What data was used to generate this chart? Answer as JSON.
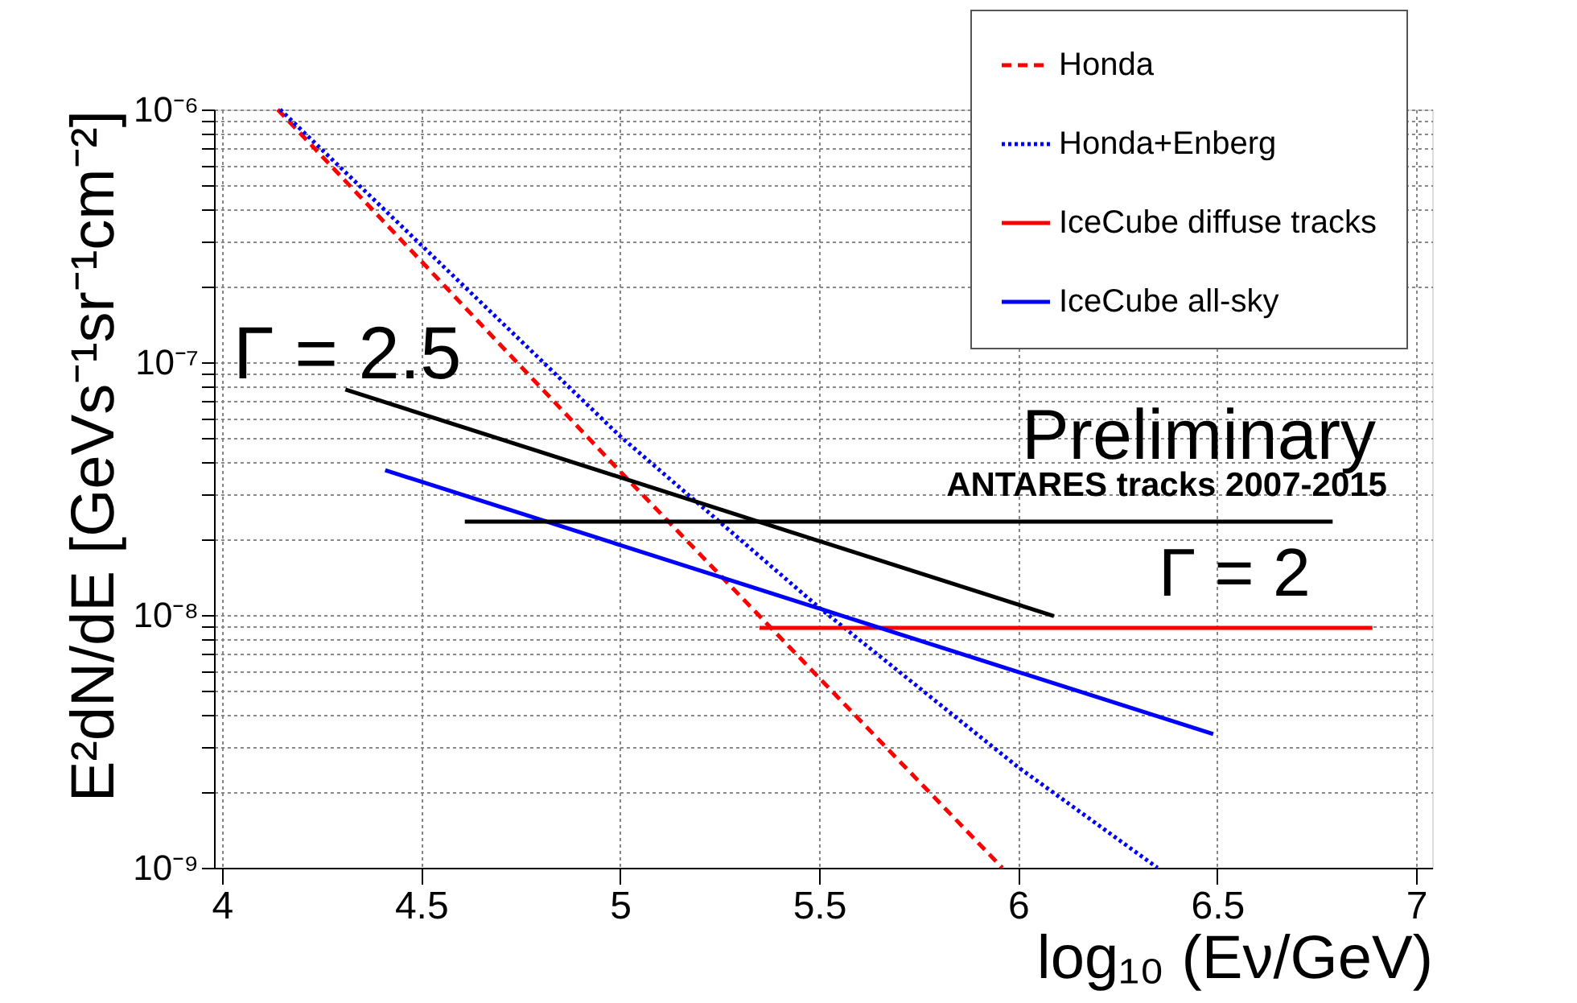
{
  "chart_data": {
    "type": "line",
    "xlabel": "log₁₀ (Eν/GeV)",
    "ylabel": "E²dN/dE [GeVs⁻¹sr⁻¹cm⁻²]",
    "log": "y",
    "xlim": [
      3.98,
      7.04
    ],
    "ylim": [
      1e-09,
      1e-06
    ],
    "xticks": [
      4,
      4.5,
      5,
      5.5,
      6,
      6.5,
      7
    ],
    "yticks": [
      {
        "value": 1e-09,
        "label": "10⁻⁹"
      },
      {
        "value": 2e-09,
        "label": null
      },
      {
        "value": 3e-09,
        "label": null
      },
      {
        "value": 4e-09,
        "label": null
      },
      {
        "value": 5e-09,
        "label": null
      },
      {
        "value": 6e-09,
        "label": null
      },
      {
        "value": 7e-09,
        "label": null
      },
      {
        "value": 8e-09,
        "label": null
      },
      {
        "value": 9e-09,
        "label": null
      },
      {
        "value": 1e-08,
        "label": "10⁻⁸"
      },
      {
        "value": 2e-08,
        "label": null
      },
      {
        "value": 3e-08,
        "label": null
      },
      {
        "value": 4e-08,
        "label": null
      },
      {
        "value": 5e-08,
        "label": null
      },
      {
        "value": 6e-08,
        "label": null
      },
      {
        "value": 7e-08,
        "label": null
      },
      {
        "value": 8e-08,
        "label": null
      },
      {
        "value": 9e-08,
        "label": null
      },
      {
        "value": 1e-07,
        "label": "10⁻⁷"
      },
      {
        "value": 2e-07,
        "label": null
      },
      {
        "value": 3e-07,
        "label": null
      },
      {
        "value": 4e-07,
        "label": null
      },
      {
        "value": 5e-07,
        "label": null
      },
      {
        "value": 6e-07,
        "label": null
      },
      {
        "value": 7e-07,
        "label": null
      },
      {
        "value": 8e-07,
        "label": null
      },
      {
        "value": 9e-07,
        "label": null
      },
      {
        "value": 1e-06,
        "label": "10⁻⁶"
      }
    ],
    "grid": true,
    "legend": "top right",
    "series": [
      {
        "name": "Honda",
        "color": "#ff0000",
        "line_style": "dashed",
        "x": [
          4.14,
          5.0,
          5.96
        ],
        "values": [
          1e-06,
          3.7e-08,
          1e-09
        ]
      },
      {
        "name": "Honda+Enberg",
        "color": "#0000ff",
        "line_style": "dotted",
        "x": [
          4.146,
          5.0,
          5.5,
          6.0,
          6.35
        ],
        "values": [
          1e-06,
          5.1e-08,
          1.07e-08,
          2.5e-09,
          1e-09
        ]
      },
      {
        "name": "IceCube diffuse tracks",
        "color": "#ff0000",
        "line_style": "solid",
        "x": [
          5.35,
          6.89
        ],
        "values": [
          8.9e-09,
          8.9e-09
        ]
      },
      {
        "name": "IceCube all-sky",
        "color": "#0000ff",
        "line_style": "solid",
        "x": [
          4.41,
          6.49
        ],
        "values": [
          3.74e-08,
          3.38e-09
        ]
      },
      {
        "color": "#000000",
        "line_style": "solid",
        "x": [
          4.31,
          6.09
        ],
        "values": [
          7.8e-08,
          9.9e-09
        ]
      },
      {
        "color": "#000000",
        "line_style": "solid",
        "x": [
          4.61,
          6.79
        ],
        "values": [
          2.34e-08,
          2.34e-08
        ]
      }
    ],
    "annotations": [
      "Γ = 2.5",
      "Γ = 2",
      "Preliminary",
      "ANTARES tracks 2007-2015"
    ]
  }
}
